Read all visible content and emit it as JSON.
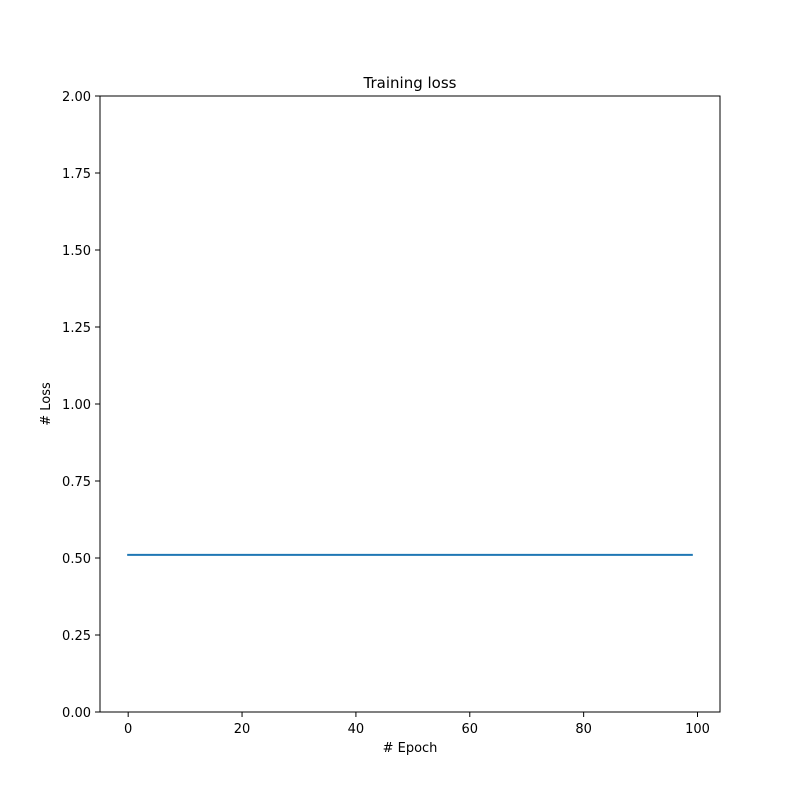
{
  "chart_data": {
    "type": "line",
    "title": "Training loss",
    "xlabel": "# Epoch",
    "ylabel": "# Loss",
    "xlim": [
      -4.95,
      103.95
    ],
    "ylim": [
      0,
      2
    ],
    "xticks": [
      0,
      20,
      40,
      60,
      80,
      100
    ],
    "xtick_labels": [
      "0",
      "20",
      "40",
      "60",
      "80",
      "100"
    ],
    "yticks": [
      0,
      0.25,
      0.5,
      0.75,
      1.0,
      1.25,
      1.5,
      1.75,
      2.0
    ],
    "ytick_labels": [
      "0.00",
      "0.25",
      "0.50",
      "0.75",
      "1.00",
      "1.25",
      "1.50",
      "1.75",
      "2.00"
    ],
    "grid": false,
    "series": [
      {
        "color": "#1f77b4",
        "x": [
          0,
          99
        ],
        "y": [
          0.51,
          0.51
        ]
      }
    ]
  }
}
